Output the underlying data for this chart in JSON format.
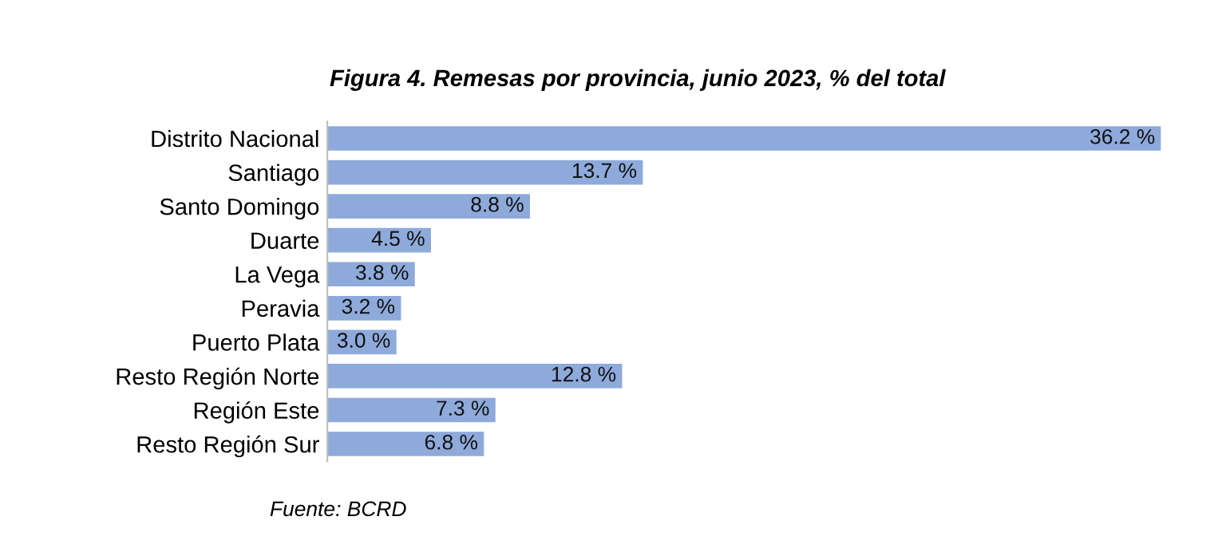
{
  "chart_data": {
    "type": "bar",
    "orientation": "horizontal",
    "title": "Figura 4. Remesas por provincia, junio 2023, % del total",
    "categories": [
      "Distrito Nacional",
      "Santiago",
      "Santo Domingo",
      "Duarte",
      "La Vega",
      "Peravia",
      "Puerto Plata",
      "Resto Región Norte",
      "Región Este",
      "Resto Región Sur"
    ],
    "values": [
      36.2,
      13.7,
      8.8,
      4.5,
      3.8,
      3.2,
      3.0,
      12.8,
      7.3,
      6.8
    ],
    "value_labels": [
      "36.2 %",
      "13.7 %",
      "8.8 %",
      "4.5 %",
      "3.8 %",
      "3.2 %",
      "3.0 %",
      "12.8 %",
      "7.3 %",
      "6.8 %"
    ],
    "color": "#8eaadb",
    "annotations": [
      "Fuente: BCRD"
    ],
    "grid": false,
    "legend": false
  }
}
